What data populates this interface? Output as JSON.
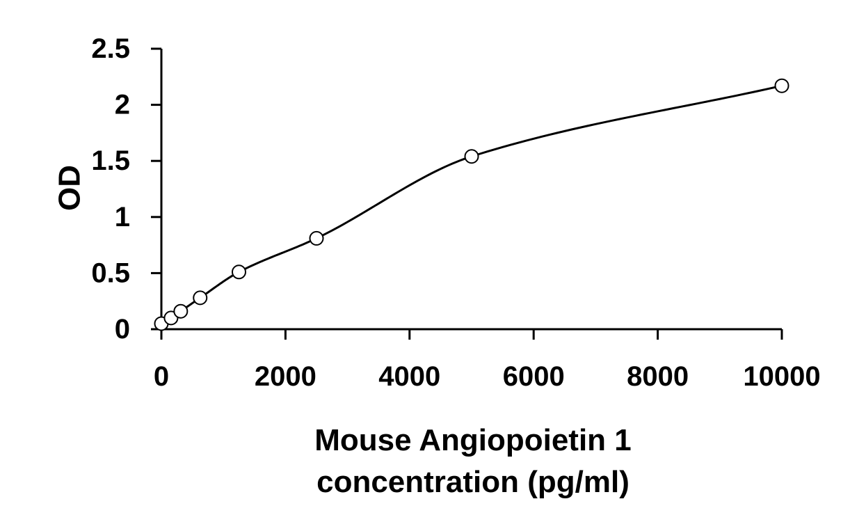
{
  "chart_data": {
    "type": "scatter",
    "xlabel": [
      "Mouse Angiopoietin 1",
      "concentration (pg/ml)"
    ],
    "ylabel": "OD",
    "xlim": [
      0,
      10000
    ],
    "ylim": [
      0,
      2.5
    ],
    "x_ticks": [
      0,
      2000,
      4000,
      6000,
      8000,
      10000
    ],
    "x_tick_labels": [
      "0",
      "2000",
      "4000",
      "6000",
      "8000",
      "10000"
    ],
    "y_ticks": [
      0,
      0.5,
      1,
      1.5,
      2,
      2.5
    ],
    "y_tick_labels": [
      "0",
      "0.5",
      "1",
      "1.5",
      "2",
      "2.5"
    ],
    "grid": false,
    "legend": "none",
    "series": [
      {
        "marker": "open-circle",
        "fit": "smooth-curve",
        "x": [
          0,
          156,
          312,
          625,
          1250,
          2500,
          5000,
          10000
        ],
        "y": [
          0.05,
          0.1,
          0.16,
          0.28,
          0.51,
          0.81,
          1.54,
          2.17
        ]
      }
    ],
    "colors": {
      "axis": "#000000",
      "marker": "#000000",
      "curve": "#000000"
    }
  }
}
